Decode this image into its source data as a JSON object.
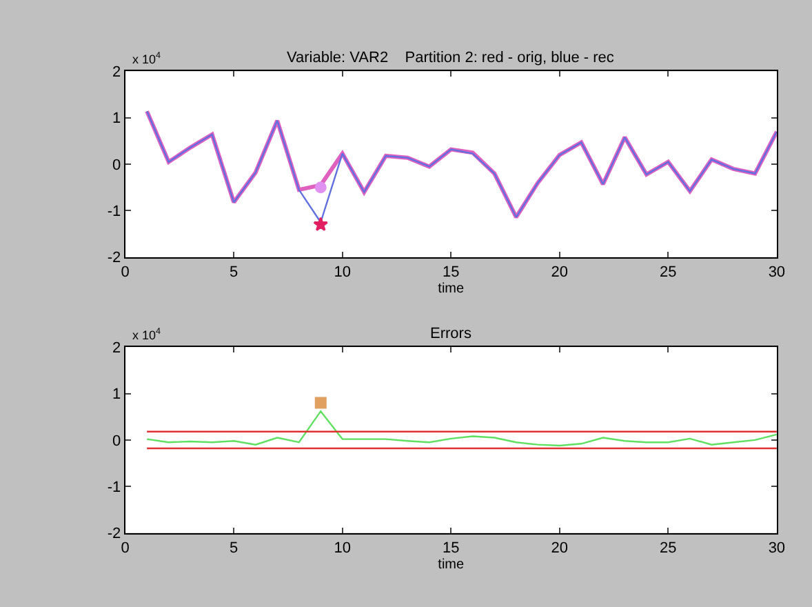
{
  "chart_data": [
    {
      "type": "line",
      "title": "Variable: VAR2    Partition 2: red - orig, blue - rec",
      "xlabel": "time",
      "annotations": [
        "x 10$^{4}$"
      ],
      "xlim": [
        0,
        30
      ],
      "xticks": [
        0,
        5,
        10,
        15,
        20,
        25,
        30
      ],
      "ylim": [
        -2,
        2
      ],
      "yticks": [
        -2,
        -1,
        0,
        1,
        2
      ],
      "marker": "none",
      "line_style": "solid",
      "x": [
        1,
        2,
        3,
        4,
        5,
        6,
        7,
        8,
        9,
        10,
        11,
        12,
        13,
        14,
        15,
        16,
        17,
        18,
        19,
        20,
        21,
        22,
        23,
        24,
        25,
        26,
        27,
        28,
        29,
        30
      ],
      "series": [
        {
          "color": "#e060c0",
          "values": [
            1.14,
            0.05,
            0.36,
            0.64,
            -0.82,
            -0.18,
            0.94,
            -0.55,
            -0.45,
            0.23,
            -0.6,
            0.18,
            0.14,
            -0.05,
            0.32,
            0.25,
            -0.2,
            -1.14,
            -0.4,
            0.2,
            0.47,
            -0.43,
            0.58,
            -0.22,
            0.05,
            -0.58,
            0.1,
            -0.1,
            -0.2,
            0.7
          ]
        },
        {
          "color": "#6070e0",
          "values": [
            1.14,
            0.05,
            0.36,
            0.64,
            -0.82,
            -0.18,
            0.94,
            -0.55,
            -1.25,
            0.23,
            -0.6,
            0.18,
            0.14,
            -0.05,
            0.32,
            0.23,
            -0.2,
            -1.14,
            -0.4,
            0.2,
            0.47,
            -0.43,
            0.58,
            -0.22,
            0.05,
            -0.58,
            0.1,
            -0.1,
            -0.2,
            0.7
          ]
        },
        {
          "type": "scatter",
          "marker": "circle",
          "color": "#e090f0",
          "values": [
            null,
            null,
            null,
            null,
            null,
            null,
            null,
            null,
            -0.5,
            null,
            null,
            null,
            null,
            null,
            null,
            null,
            null,
            null,
            null,
            null,
            null,
            null,
            null,
            null,
            null,
            null,
            null,
            null,
            null,
            null
          ]
        },
        {
          "type": "scatter",
          "marker": "star",
          "color": "#e02060",
          "values": [
            null,
            null,
            null,
            null,
            null,
            null,
            null,
            null,
            -1.3,
            null,
            null,
            null,
            null,
            null,
            null,
            null,
            null,
            null,
            null,
            null,
            null,
            null,
            null,
            null,
            null,
            null,
            null,
            null,
            null,
            null
          ]
        }
      ]
    },
    {
      "type": "line",
      "title": "Errors",
      "xlabel": "time",
      "annotations": [
        "x 10$^{4}$"
      ],
      "xlim": [
        0,
        30
      ],
      "xticks": [
        0,
        5,
        10,
        15,
        20,
        25,
        30
      ],
      "ylim": [
        -2,
        2
      ],
      "yticks": [
        -2,
        -1,
        0,
        1,
        2
      ],
      "marker": "none",
      "line_style": "solid",
      "x": [
        1,
        2,
        3,
        4,
        5,
        6,
        7,
        8,
        9,
        10,
        11,
        12,
        13,
        14,
        15,
        16,
        17,
        18,
        19,
        20,
        21,
        22,
        23,
        24,
        25,
        26,
        27,
        28,
        29,
        30
      ],
      "series": [
        {
          "color": "#60e060",
          "values": [
            0.02,
            -0.05,
            -0.03,
            -0.05,
            -0.02,
            -0.1,
            0.05,
            -0.05,
            0.62,
            0.02,
            0.02,
            0.02,
            -0.02,
            -0.05,
            0.03,
            0.08,
            0.05,
            -0.05,
            -0.1,
            -0.12,
            -0.08,
            0.05,
            -0.02,
            -0.05,
            -0.05,
            0.03,
            -0.1,
            -0.05,
            0.0,
            0.12
          ]
        },
        {
          "type": "scatter",
          "marker": "square",
          "color": "#e0a060",
          "values": [
            null,
            null,
            null,
            null,
            null,
            null,
            null,
            null,
            0.8,
            null,
            null,
            null,
            null,
            null,
            null,
            null,
            null,
            null,
            null,
            null,
            null,
            null,
            null,
            null,
            null,
            null,
            null,
            null,
            null,
            null
          ]
        }
      ],
      "ref_lines": [
        {
          "axis": "y",
          "value": 0.18,
          "color": "#e03030"
        },
        {
          "axis": "y",
          "value": -0.18,
          "color": "#e03030"
        }
      ]
    }
  ]
}
